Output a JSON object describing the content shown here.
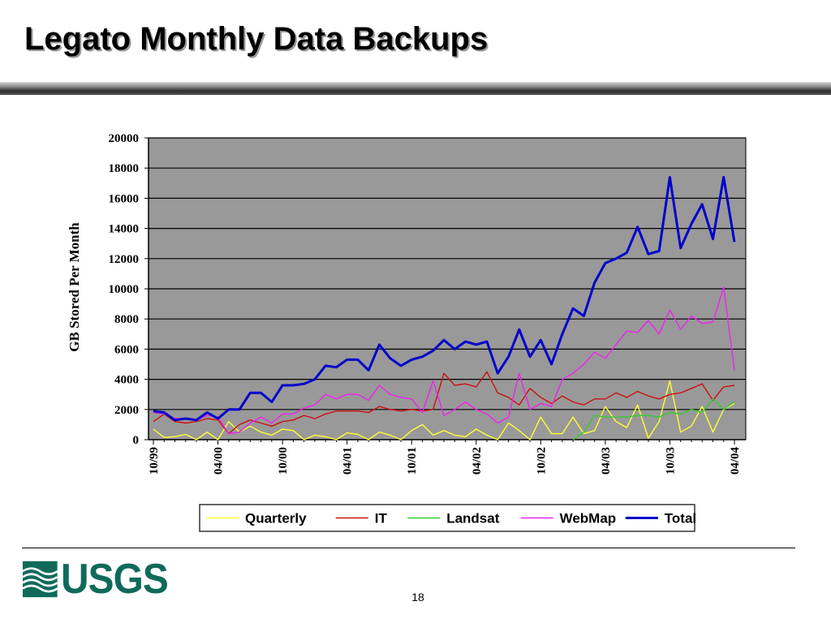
{
  "slide": {
    "title": "Legato Monthly Data Backups",
    "page_number": "18",
    "logo_text": "USGS"
  },
  "chart_data": {
    "type": "line",
    "ylabel": "GB Stored Per Month",
    "xlabel": "",
    "ylim": [
      0,
      20000
    ],
    "yticks": [
      0,
      2000,
      4000,
      6000,
      8000,
      10000,
      12000,
      14000,
      16000,
      18000,
      20000
    ],
    "x": [
      "10/99",
      "11/99",
      "12/99",
      "01/00",
      "02/00",
      "03/00",
      "04/00",
      "05/00",
      "06/00",
      "07/00",
      "08/00",
      "09/00",
      "10/00",
      "11/00",
      "12/00",
      "01/01",
      "02/01",
      "03/01",
      "04/01",
      "05/01",
      "06/01",
      "07/01",
      "08/01",
      "09/01",
      "10/01",
      "11/01",
      "12/01",
      "01/02",
      "02/02",
      "03/02",
      "04/02",
      "05/02",
      "06/02",
      "07/02",
      "08/02",
      "09/02",
      "10/02",
      "11/02",
      "12/02",
      "01/03",
      "02/03",
      "03/03",
      "04/03",
      "05/03",
      "06/03",
      "07/03",
      "08/03",
      "09/03",
      "10/03",
      "11/03",
      "12/03",
      "01/04",
      "02/04",
      "03/04",
      "04/04"
    ],
    "xtick_labels": [
      "10/99",
      "04/00",
      "10/00",
      "04/01",
      "10/01",
      "04/02",
      "10/02",
      "04/03",
      "10/03",
      "04/04"
    ],
    "plot_background": "#999999",
    "grid": true,
    "legend_position": "bottom",
    "series": [
      {
        "name": "Quarterly",
        "color": "#ffff33",
        "values": [
          700,
          150,
          200,
          350,
          0,
          500,
          0,
          1200,
          500,
          900,
          500,
          300,
          700,
          600,
          0,
          300,
          200,
          0,
          450,
          350,
          0,
          500,
          300,
          0,
          600,
          1000,
          300,
          600,
          300,
          200,
          700,
          300,
          0,
          1100,
          600,
          0,
          1500,
          400,
          400,
          1500,
          400,
          600,
          2200,
          1200,
          800,
          2300,
          100,
          1200,
          3900,
          500,
          900,
          2200,
          500,
          2000,
          2400
        ]
      },
      {
        "name": "IT",
        "color": "#cc1111",
        "values": [
          1200,
          1700,
          1200,
          1100,
          1200,
          1400,
          1300,
          400,
          1000,
          1300,
          1100,
          900,
          1200,
          1300,
          1600,
          1400,
          1700,
          1900,
          1900,
          1900,
          1800,
          2200,
          2000,
          1900,
          2000,
          1900,
          2000,
          4400,
          3600,
          3700,
          3500,
          4500,
          3100,
          2800,
          2300,
          3400,
          2800,
          2400,
          2900,
          2500,
          2300,
          2700,
          2700,
          3100,
          2800,
          3200,
          2900,
          2700,
          3000,
          3100,
          3400,
          3700,
          2600,
          3500,
          3600
        ]
      },
      {
        "name": "Landsat",
        "color": "#33cc33",
        "values": [
          null,
          null,
          null,
          null,
          null,
          null,
          null,
          null,
          null,
          null,
          null,
          null,
          null,
          null,
          null,
          null,
          null,
          null,
          null,
          null,
          null,
          null,
          null,
          null,
          null,
          null,
          null,
          null,
          null,
          null,
          null,
          null,
          null,
          null,
          null,
          null,
          null,
          null,
          null,
          0,
          500,
          1600,
          1500,
          1500,
          1500,
          1600,
          1600,
          1500,
          1800,
          1700,
          2000,
          1800,
          2700,
          2000,
          2500
        ]
      },
      {
        "name": "WebMap",
        "color": "#ee22ee",
        "values": [
          1800,
          1700,
          1400,
          1400,
          1300,
          1600,
          1500,
          400,
          500,
          1100,
          1500,
          1100,
          1700,
          1700,
          2100,
          2300,
          3000,
          2700,
          3000,
          3000,
          2600,
          3600,
          3000,
          2800,
          2700,
          1800,
          3900,
          1600,
          2000,
          2500,
          2000,
          1700,
          1100,
          1500,
          4400,
          2000,
          2400,
          2200,
          4000,
          4400,
          5000,
          5800,
          5400,
          6300,
          7200,
          7100,
          7900,
          7000,
          8600,
          7300,
          8200,
          7700,
          7800,
          10100,
          4600
        ]
      },
      {
        "name": "Total",
        "color": "#0000cc",
        "values": [
          1900,
          1800,
          1300,
          1400,
          1300,
          1800,
          1400,
          2000,
          2000,
          3100,
          3100,
          2500,
          3600,
          3600,
          3700,
          4000,
          4900,
          4800,
          5300,
          5300,
          4600,
          6300,
          5400,
          4900,
          5300,
          5500,
          5900,
          6600,
          6000,
          6500,
          6300,
          6500,
          4400,
          5500,
          7300,
          5500,
          6600,
          5000,
          7000,
          8700,
          8200,
          10400,
          11700,
          12000,
          12400,
          14100,
          12300,
          12500,
          17400,
          12700,
          14300,
          15600,
          13300,
          17400,
          13100
        ]
      }
    ]
  }
}
